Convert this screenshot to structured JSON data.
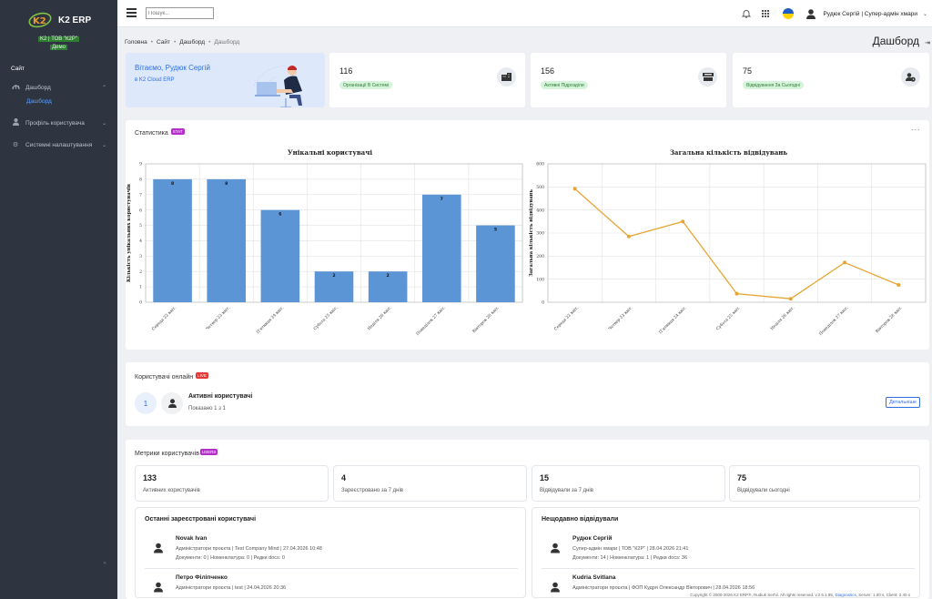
{
  "app": {
    "name": "K2 ERP",
    "org": "K2 | ТОВ \"К2Р\"",
    "env": "Демо"
  },
  "sidebar": {
    "section": "Сайт",
    "items": [
      {
        "label": "Дашборд",
        "icon": "tachometer-icon",
        "expanded": true
      },
      {
        "label": "Профіль користувача",
        "icon": "user-icon"
      },
      {
        "label": "Системні налаштування",
        "icon": "gear-icon"
      }
    ],
    "sub_item": "Дашборд",
    "bottom_arrow": "«"
  },
  "header": {
    "search_placeholder": "Пошук...",
    "user": "Рудюк Сергій | Супер-адмін хмари"
  },
  "breadcrumb": [
    "Головна",
    "Сайт",
    "Дашборд",
    "Дашборд"
  ],
  "page_title": "Дашборд",
  "welcome": {
    "title": "Вітаємо, Рудюк Сергій",
    "subtitle": "в K2 Cloud ERP"
  },
  "stats": [
    {
      "value": "116",
      "label": "Організації В Системі",
      "icon": "building-icon"
    },
    {
      "value": "156",
      "label": "Активні Підрозділи",
      "icon": "cash-register-icon"
    },
    {
      "value": "75",
      "label": "Відвідування За Сьогодні",
      "icon": "user-clock-icon"
    }
  ],
  "statistics": {
    "title": "Статистика",
    "tag": "STAT"
  },
  "chart_data": [
    {
      "type": "bar",
      "title": "Унікальні користувачі",
      "ylabel": "Кількість унікальних користувачів",
      "categories": [
        "Середа 22 квіт.",
        "Четвер 23 квіт.",
        "П'ятниця 24 квіт.",
        "Субота 25 квіт.",
        "Неділя 26 квіт.",
        "Понеділок 27 квіт.",
        "Вівторок 28 квіт."
      ],
      "values": [
        8,
        8,
        6,
        2,
        2,
        7,
        5
      ],
      "ylim": [
        0,
        9
      ],
      "yticks": [
        0,
        1,
        2,
        3,
        4,
        5,
        6,
        7,
        8,
        9
      ],
      "color": "#5b95d6"
    },
    {
      "type": "line",
      "title": "Загальна кількість відвідувань",
      "ylabel": "Загальна кількість відвідувань",
      "categories": [
        "Середа 22 квіт.",
        "Четвер 23 квіт.",
        "П'ятниця 24 квіт.",
        "Субота 25 квіт.",
        "Неділя 26 квіт.",
        "Понеділок 27 квіт.",
        "Вівторок 28 квіт."
      ],
      "values": [
        492,
        285,
        350,
        37,
        15,
        172,
        75
      ],
      "ylim": [
        0,
        600
      ],
      "yticks": [
        0,
        100,
        200,
        300,
        400,
        500,
        600
      ],
      "color": "#e6a532"
    }
  ],
  "online": {
    "title": "Користувачі онлайн",
    "tag": "LIVE",
    "count": "1",
    "heading": "Активні користувачі",
    "shown": "Показано 1 з 1",
    "details": "Детальніше"
  },
  "metrics": {
    "title": "Метрики користувачів",
    "tag": "USERS",
    "cards": [
      {
        "value": "133",
        "label": "Активних користувачів"
      },
      {
        "value": "4",
        "label": "Зареєстровано за 7 днів"
      },
      {
        "value": "15",
        "label": "Відвідували за 7 днів"
      },
      {
        "value": "75",
        "label": "Відвідували сьогодні"
      }
    ]
  },
  "recent_registered": {
    "title": "Останні зареєстровані користувачі",
    "rows": [
      {
        "name": "Novak Ivan",
        "line1": "Адміністратори проєкта | Test Company Mind | 27.04.2026 10:48",
        "line2": "Документи: 0 | Номенклатура: 0 | Редки docs: 0"
      },
      {
        "name": "Петро Філіпченко",
        "line1": "Адміністратори проєкта | test | 24.04.2026 20:36",
        "line2": ""
      }
    ]
  },
  "recent_visited": {
    "title": "Нещодавно відвідували",
    "rows": [
      {
        "name": "Рудюк Сергій",
        "line1": "Супер-адмін хмари | ТОВ \"К2Р\" | 28.04.2026 21:41",
        "line2": "Документи: 14 | Номенклатура: 1 | Редки docs: 36"
      },
      {
        "name": "Kudria Svitlana",
        "line1": "Адміністратори проєкта | ФОП Кудря Олександр Вікторович | 28.04.2026 18:56",
        "line2": ""
      }
    ]
  },
  "footer": {
    "text": "Copyright © 2000-2026 K2 ERP®, Rudiuk Serhii. All rights reserved. v.2.5.1.85,",
    "link": "Diagnostics",
    "timing": ", Server: 1.00 s, Client: 2.40 s"
  }
}
